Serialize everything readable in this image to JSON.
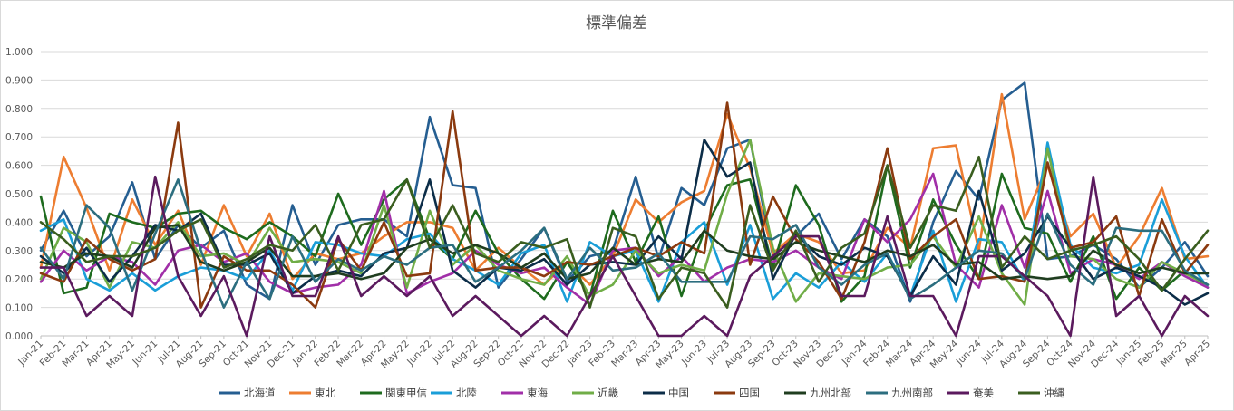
{
  "chart_data": {
    "type": "line",
    "title": "標準偏差",
    "xlabel": "",
    "ylabel": "",
    "ylim": [
      0,
      1.0
    ],
    "ytick_labels": [
      "0.000",
      "0.100",
      "0.200",
      "0.300",
      "0.400",
      "0.500",
      "0.600",
      "0.700",
      "0.800",
      "0.900",
      "1.000"
    ],
    "grid": true,
    "legend_position": "bottom",
    "categories": [
      "Jan-21",
      "Feb-21",
      "Mar-21",
      "Apr-21",
      "May-21",
      "Jun-21",
      "Jul-21",
      "Aug-21",
      "Sep-21",
      "Oct-21",
      "Nov-21",
      "Dec-21",
      "Jan-22",
      "Feb-22",
      "Mar-22",
      "Apr-22",
      "May-22",
      "Jun-22",
      "Jul-22",
      "Aug-22",
      "Sep-22",
      "Oct-22",
      "Nov-22",
      "Dec-22",
      "Jan-23",
      "Feb-23",
      "Mar-23",
      "Apr-23",
      "May-23",
      "Jun-23",
      "Jul-23",
      "Aug-23",
      "Sep-23",
      "Oct-23",
      "Nov-23",
      "Dec-23",
      "Jan-24",
      "Feb-24",
      "Mar-24",
      "Apr-24",
      "May-24",
      "Jun-24",
      "Jul-24",
      "Aug-24",
      "Sep-24",
      "Oct-24",
      "Nov-24",
      "Dec-24",
      "Jan-25",
      "Feb-25",
      "Mar-25",
      "Apr-25"
    ],
    "series": [
      {
        "name": "北海道",
        "color": "#255e91",
        "values": [
          0.3,
          0.44,
          0.28,
          0.35,
          0.54,
          0.27,
          0.39,
          0.31,
          0.37,
          0.18,
          0.13,
          0.46,
          0.25,
          0.39,
          0.41,
          0.41,
          0.35,
          0.77,
          0.53,
          0.52,
          0.17,
          0.27,
          0.38,
          0.19,
          0.28,
          0.3,
          0.56,
          0.27,
          0.52,
          0.46,
          0.66,
          0.69,
          0.28,
          0.35,
          0.43,
          0.27,
          0.41,
          0.35,
          0.12,
          0.4,
          0.58,
          0.48,
          0.83,
          0.89,
          0.27,
          0.28,
          0.32,
          0.27,
          0.17,
          0.24,
          0.33,
          0.21
        ]
      },
      {
        "name": "東北",
        "color": "#ed7d31",
        "values": [
          0.24,
          0.63,
          0.45,
          0.23,
          0.48,
          0.32,
          0.44,
          0.25,
          0.46,
          0.28,
          0.43,
          0.2,
          0.29,
          0.27,
          0.29,
          0.35,
          0.4,
          0.4,
          0.38,
          0.23,
          0.31,
          0.24,
          0.18,
          0.26,
          0.18,
          0.28,
          0.48,
          0.4,
          0.47,
          0.51,
          0.78,
          0.59,
          0.29,
          0.36,
          0.33,
          0.22,
          0.23,
          0.38,
          0.31,
          0.66,
          0.67,
          0.3,
          0.85,
          0.41,
          0.6,
          0.35,
          0.43,
          0.24,
          0.35,
          0.52,
          0.27,
          0.28
        ]
      },
      {
        "name": "関東甲信",
        "color": "#1e6b1e",
        "values": [
          0.49,
          0.15,
          0.17,
          0.43,
          0.4,
          0.38,
          0.43,
          0.44,
          0.38,
          0.34,
          0.4,
          0.35,
          0.28,
          0.5,
          0.32,
          0.48,
          0.55,
          0.34,
          0.27,
          0.44,
          0.29,
          0.2,
          0.13,
          0.26,
          0.14,
          0.44,
          0.26,
          0.42,
          0.14,
          0.37,
          0.53,
          0.55,
          0.24,
          0.53,
          0.39,
          0.12,
          0.21,
          0.6,
          0.24,
          0.48,
          0.32,
          0.2,
          0.57,
          0.38,
          0.36,
          0.19,
          0.35,
          0.13,
          0.24,
          0.16,
          0.23,
          0.17
        ]
      },
      {
        "name": "北陸",
        "color": "#1a9ed8",
        "values": [
          0.37,
          0.41,
          0.2,
          0.16,
          0.22,
          0.16,
          0.21,
          0.24,
          0.23,
          0.2,
          0.3,
          0.16,
          0.33,
          0.32,
          0.29,
          0.28,
          0.34,
          0.36,
          0.27,
          0.23,
          0.18,
          0.29,
          0.32,
          0.12,
          0.33,
          0.28,
          0.3,
          0.12,
          0.33,
          0.4,
          0.18,
          0.39,
          0.13,
          0.22,
          0.17,
          0.26,
          0.19,
          0.29,
          0.14,
          0.37,
          0.12,
          0.34,
          0.33,
          0.19,
          0.68,
          0.32,
          0.24,
          0.22,
          0.25,
          0.48,
          0.28,
          0.17
        ]
      },
      {
        "name": "東海",
        "color": "#a12fa8",
        "values": [
          0.19,
          0.3,
          0.23,
          0.28,
          0.26,
          0.18,
          0.3,
          0.32,
          0.26,
          0.29,
          0.19,
          0.15,
          0.17,
          0.18,
          0.25,
          0.51,
          0.15,
          0.19,
          0.22,
          0.3,
          0.25,
          0.22,
          0.24,
          0.17,
          0.11,
          0.3,
          0.31,
          0.21,
          0.28,
          0.19,
          0.24,
          0.27,
          0.26,
          0.3,
          0.24,
          0.2,
          0.41,
          0.33,
          0.41,
          0.57,
          0.25,
          0.17,
          0.46,
          0.24,
          0.51,
          0.22,
          0.27,
          0.25,
          0.2,
          0.26,
          0.21,
          0.17
        ]
      },
      {
        "name": "近畿",
        "color": "#70ad47",
        "values": [
          0.2,
          0.38,
          0.33,
          0.17,
          0.33,
          0.31,
          0.4,
          0.28,
          0.29,
          0.25,
          0.38,
          0.26,
          0.27,
          0.26,
          0.22,
          0.46,
          0.17,
          0.44,
          0.25,
          0.32,
          0.23,
          0.2,
          0.18,
          0.28,
          0.14,
          0.18,
          0.3,
          0.22,
          0.25,
          0.23,
          0.5,
          0.69,
          0.31,
          0.12,
          0.22,
          0.21,
          0.2,
          0.24,
          0.25,
          0.35,
          0.24,
          0.42,
          0.22,
          0.11,
          0.66,
          0.28,
          0.27,
          0.2,
          0.17,
          0.26,
          0.22,
          0.18
        ]
      },
      {
        "name": "中国",
        "color": "#0c2d48",
        "values": [
          0.28,
          0.22,
          0.31,
          0.19,
          0.28,
          0.39,
          0.37,
          0.43,
          0.25,
          0.25,
          0.29,
          0.15,
          0.21,
          0.23,
          0.21,
          0.29,
          0.31,
          0.55,
          0.23,
          0.17,
          0.24,
          0.23,
          0.27,
          0.18,
          0.25,
          0.26,
          0.25,
          0.35,
          0.27,
          0.69,
          0.56,
          0.61,
          0.2,
          0.36,
          0.28,
          0.25,
          0.31,
          0.28,
          0.14,
          0.28,
          0.18,
          0.51,
          0.23,
          0.29,
          0.42,
          0.31,
          0.2,
          0.24,
          0.21,
          0.17,
          0.11,
          0.15
        ]
      },
      {
        "name": "四国",
        "color": "#8b3a0f",
        "values": [
          0.22,
          0.19,
          0.34,
          0.27,
          0.23,
          0.27,
          0.75,
          0.1,
          0.28,
          0.23,
          0.23,
          0.18,
          0.1,
          0.34,
          0.23,
          0.4,
          0.21,
          0.22,
          0.79,
          0.23,
          0.24,
          0.24,
          0.21,
          0.26,
          0.25,
          0.28,
          0.31,
          0.28,
          0.33,
          0.29,
          0.82,
          0.25,
          0.49,
          0.34,
          0.26,
          0.13,
          0.33,
          0.66,
          0.27,
          0.35,
          0.41,
          0.2,
          0.21,
          0.19,
          0.61,
          0.31,
          0.33,
          0.42,
          0.14,
          0.41,
          0.22,
          0.32
        ]
      },
      {
        "name": "九州北部",
        "color": "#1f3d1f",
        "values": [
          0.26,
          0.24,
          0.29,
          0.28,
          0.24,
          0.38,
          0.39,
          0.26,
          0.23,
          0.26,
          0.31,
          0.21,
          0.21,
          0.22,
          0.2,
          0.22,
          0.31,
          0.34,
          0.29,
          0.32,
          0.29,
          0.24,
          0.29,
          0.2,
          0.22,
          0.31,
          0.25,
          0.27,
          0.26,
          0.37,
          0.3,
          0.28,
          0.27,
          0.33,
          0.3,
          0.28,
          0.26,
          0.3,
          0.28,
          0.32,
          0.25,
          0.26,
          0.2,
          0.21,
          0.2,
          0.21,
          0.3,
          0.25,
          0.22,
          0.24,
          0.22,
          0.22
        ]
      },
      {
        "name": "九州南部",
        "color": "#2c6e7f",
        "values": [
          0.31,
          0.2,
          0.46,
          0.38,
          0.16,
          0.36,
          0.55,
          0.3,
          0.1,
          0.26,
          0.13,
          0.35,
          0.19,
          0.27,
          0.23,
          0.28,
          0.25,
          0.31,
          0.32,
          0.19,
          0.24,
          0.3,
          0.38,
          0.2,
          0.31,
          0.23,
          0.24,
          0.29,
          0.19,
          0.19,
          0.19,
          0.35,
          0.34,
          0.39,
          0.24,
          0.18,
          0.25,
          0.29,
          0.13,
          0.18,
          0.24,
          0.3,
          0.29,
          0.2,
          0.43,
          0.25,
          0.18,
          0.38,
          0.37,
          0.37,
          0.23,
          0.18
        ]
      },
      {
        "name": "奄美",
        "color": "#5b1a5e",
        "values": [
          0.24,
          0.24,
          0.07,
          0.14,
          0.07,
          0.56,
          0.21,
          0.07,
          0.21,
          0.0,
          0.35,
          0.14,
          0.14,
          0.35,
          0.14,
          0.21,
          0.14,
          0.21,
          0.07,
          0.14,
          0.07,
          0.0,
          0.07,
          0.0,
          0.14,
          0.28,
          0.14,
          0.0,
          0.0,
          0.07,
          0.0,
          0.21,
          0.28,
          0.35,
          0.35,
          0.14,
          0.14,
          0.42,
          0.14,
          0.14,
          0.0,
          0.28,
          0.28,
          0.21,
          0.14,
          0.0,
          0.56,
          0.07,
          0.14,
          0.0,
          0.14,
          0.07
        ]
      },
      {
        "name": "沖縄",
        "color": "#3a5e1f",
        "values": [
          0.4,
          0.34,
          0.26,
          0.28,
          0.28,
          0.31,
          0.37,
          0.41,
          0.24,
          0.27,
          0.32,
          0.3,
          0.39,
          0.23,
          0.39,
          0.41,
          0.55,
          0.31,
          0.46,
          0.29,
          0.26,
          0.33,
          0.31,
          0.34,
          0.1,
          0.38,
          0.35,
          0.13,
          0.24,
          0.22,
          0.1,
          0.46,
          0.23,
          0.37,
          0.19,
          0.31,
          0.36,
          0.6,
          0.31,
          0.46,
          0.44,
          0.63,
          0.24,
          0.35,
          0.27,
          0.3,
          0.32,
          0.35,
          0.27,
          0.16,
          0.27,
          0.37
        ]
      }
    ]
  }
}
